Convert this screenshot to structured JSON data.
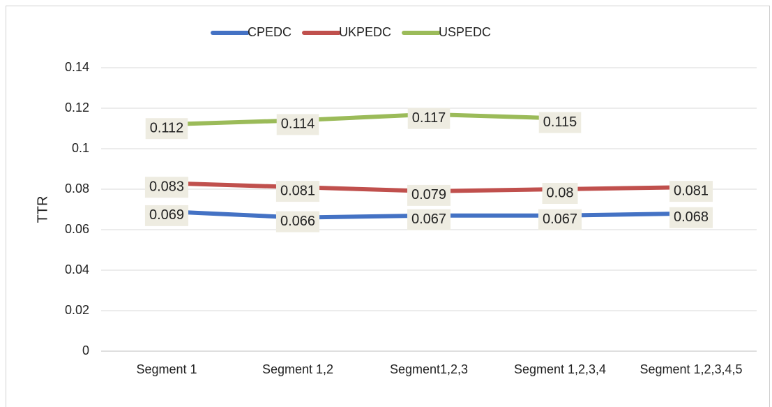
{
  "chart_data": {
    "type": "line",
    "y_label": "TTR",
    "categories": [
      "Segment 1",
      "Segment 1,2",
      "Segment1,2,3",
      "Segment 1,2,3,4",
      "Segment 1,2,3,4,5"
    ],
    "series": [
      {
        "name": "CPEDC",
        "color": "#4472c4",
        "values": [
          0.069,
          0.066,
          0.067,
          0.067,
          0.068
        ]
      },
      {
        "name": "UKPEDC",
        "color": "#c0504d",
        "values": [
          0.083,
          0.081,
          0.079,
          0.08,
          0.081
        ]
      },
      {
        "name": "USPEDC",
        "color": "#9bbb59",
        "values": [
          0.112,
          0.114,
          0.117,
          0.115,
          null
        ]
      }
    ],
    "ylim": [
      0,
      0.14
    ],
    "yticks": [
      0,
      0.02,
      0.04,
      0.06,
      0.08,
      0.1,
      0.12,
      0.14
    ],
    "grid": true,
    "legend": "top"
  }
}
